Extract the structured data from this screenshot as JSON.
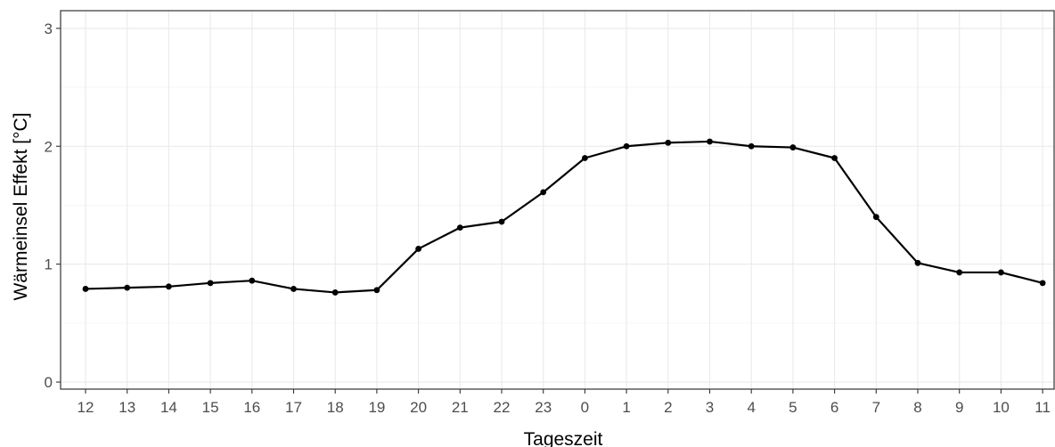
{
  "chart_data": {
    "type": "line",
    "xlabel": "Tageszeit",
    "ylabel": "Wärmeinsel Effekt [°C]",
    "categories": [
      "12",
      "13",
      "14",
      "15",
      "16",
      "17",
      "18",
      "19",
      "20",
      "21",
      "22",
      "23",
      "0",
      "1",
      "2",
      "3",
      "4",
      "5",
      "6",
      "7",
      "8",
      "9",
      "10",
      "11"
    ],
    "values": [
      0.79,
      0.8,
      0.81,
      0.84,
      0.86,
      0.79,
      0.76,
      0.78,
      1.13,
      1.31,
      1.36,
      1.61,
      1.9,
      2.0,
      2.03,
      2.04,
      2.0,
      1.99,
      1.9,
      1.4,
      1.01,
      0.93,
      0.93,
      0.84
    ],
    "y_ticks": [
      "0",
      "1",
      "2",
      "3"
    ],
    "ylim": [
      -0.06,
      3.15
    ],
    "grid": true,
    "legend": "none",
    "colors": {
      "line": "#000000",
      "grid": "#ebebeb",
      "border": "#333333",
      "text": "#4d4d4d"
    }
  }
}
